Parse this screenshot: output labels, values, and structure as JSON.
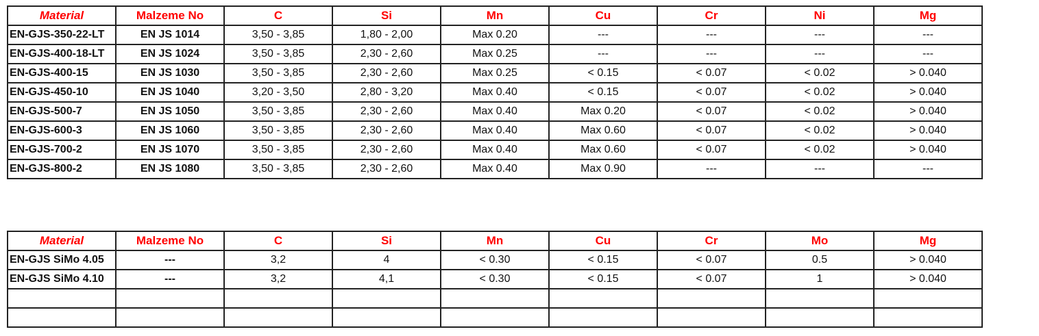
{
  "header_color": "#ff0000",
  "table1": {
    "headers": [
      "Material",
      "Malzeme No",
      "C",
      "Si",
      "Mn",
      "Cu",
      "Cr",
      "Ni",
      "Mg"
    ],
    "rows": [
      [
        "EN-GJS-350-22-LT",
        "EN JS 1014",
        "3,50 - 3,85",
        "1,80 - 2,00",
        "Max 0.20",
        "---",
        "---",
        "---",
        "---"
      ],
      [
        "EN-GJS-400-18-LT",
        "EN JS 1024",
        "3,50 - 3,85",
        "2,30 - 2,60",
        "Max 0.25",
        "---",
        "---",
        "---",
        "---"
      ],
      [
        "EN-GJS-400-15",
        "EN JS 1030",
        "3,50 - 3,85",
        "2,30 - 2,60",
        "Max 0.25",
        "< 0.15",
        "< 0.07",
        "< 0.02",
        "> 0.040"
      ],
      [
        "EN-GJS-450-10",
        "EN JS 1040",
        "3,20 - 3,50",
        "2,80 - 3,20",
        "Max 0.40",
        "< 0.15",
        "< 0.07",
        "< 0.02",
        "> 0.040"
      ],
      [
        "EN-GJS-500-7",
        "EN JS 1050",
        "3,50 - 3,85",
        "2,30 - 2,60",
        "Max 0.40",
        "Max 0.20",
        "< 0.07",
        "< 0.02",
        "> 0.040"
      ],
      [
        "EN-GJS-600-3",
        "EN JS 1060",
        "3,50 - 3,85",
        "2,30 - 2,60",
        "Max 0.40",
        "Max 0.60",
        "< 0.07",
        "< 0.02",
        "> 0.040"
      ],
      [
        "EN-GJS-700-2",
        "EN JS 1070",
        "3,50 - 3,85",
        "2,30 - 2,60",
        "Max 0.40",
        "Max 0.60",
        "< 0.07",
        "< 0.02",
        "> 0.040"
      ],
      [
        "EN-GJS-800-2",
        "EN JS 1080",
        "3,50 - 3,85",
        "2,30 - 2,60",
        "Max 0.40",
        "Max 0.90",
        "---",
        "---",
        "---"
      ]
    ]
  },
  "table2": {
    "headers": [
      "Material",
      "Malzeme No",
      "C",
      "Si",
      "Mn",
      "Cu",
      "Cr",
      "Mo",
      "Mg"
    ],
    "rows": [
      [
        "EN-GJS SiMo 4.05",
        "---",
        "3,2",
        "4",
        "< 0.30",
        "< 0.15",
        "< 0.07",
        "0.5",
        "> 0.040"
      ],
      [
        "EN-GJS SiMo 4.10",
        "---",
        "3,2",
        "4,1",
        "< 0.30",
        "< 0.15",
        "< 0.07",
        "1",
        "> 0.040"
      ],
      [
        "",
        "",
        "",
        "",
        "",
        "",
        "",
        "",
        ""
      ],
      [
        "",
        "",
        "",
        "",
        "",
        "",
        "",
        "",
        ""
      ]
    ]
  }
}
